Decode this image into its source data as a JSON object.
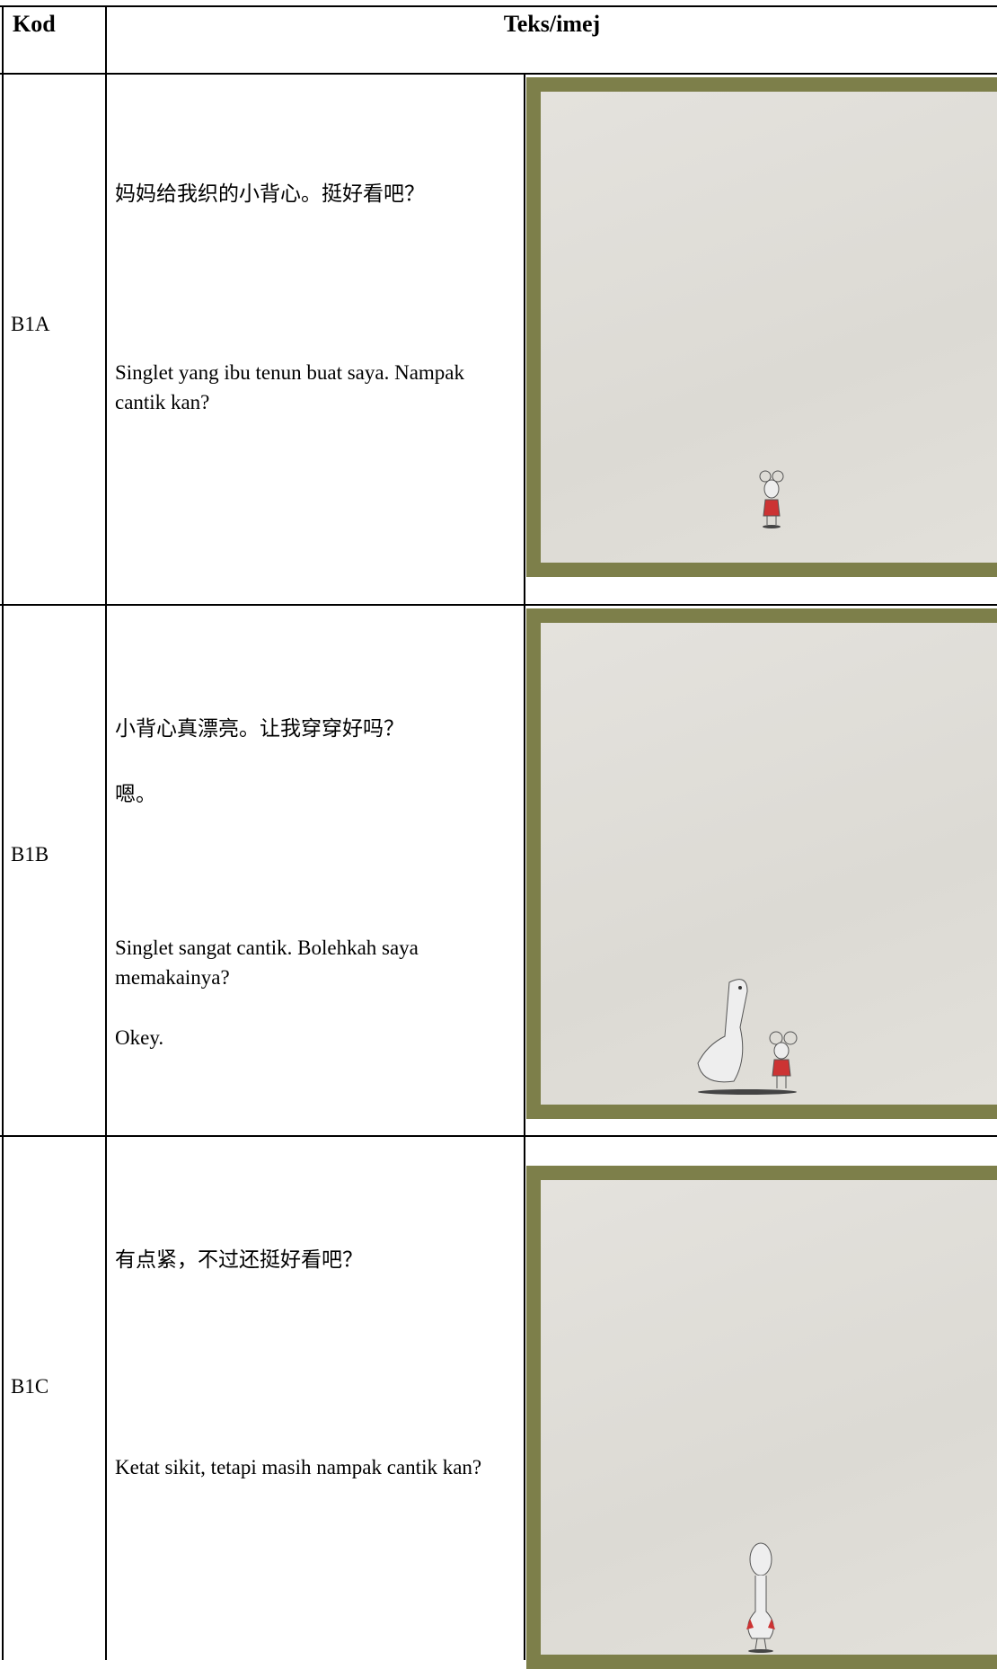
{
  "table": {
    "header": [
      "Kod",
      "Teks/imej"
    ],
    "rows": [
      {
        "code": "B1A",
        "texts": [
          "妈妈给我织的小背心。挺好看吧？",
          "Singlet yang ibu tenun buat saya. Nampak cantik kan?"
        ]
      },
      {
        "code": "B1B",
        "texts": [
          "小背心真漂亮。让我穿穿好吗？",
          "嗯。",
          "Singlet sangat cantik. Bolehkah saya memakainya?",
          "Okey."
        ]
      },
      {
        "code": "B1C",
        "texts": [
          "有点紧，不过还挺好看吧？",
          "Ketat sikit, tetapi masih nampak cantik kan?"
        ]
      }
    ]
  }
}
